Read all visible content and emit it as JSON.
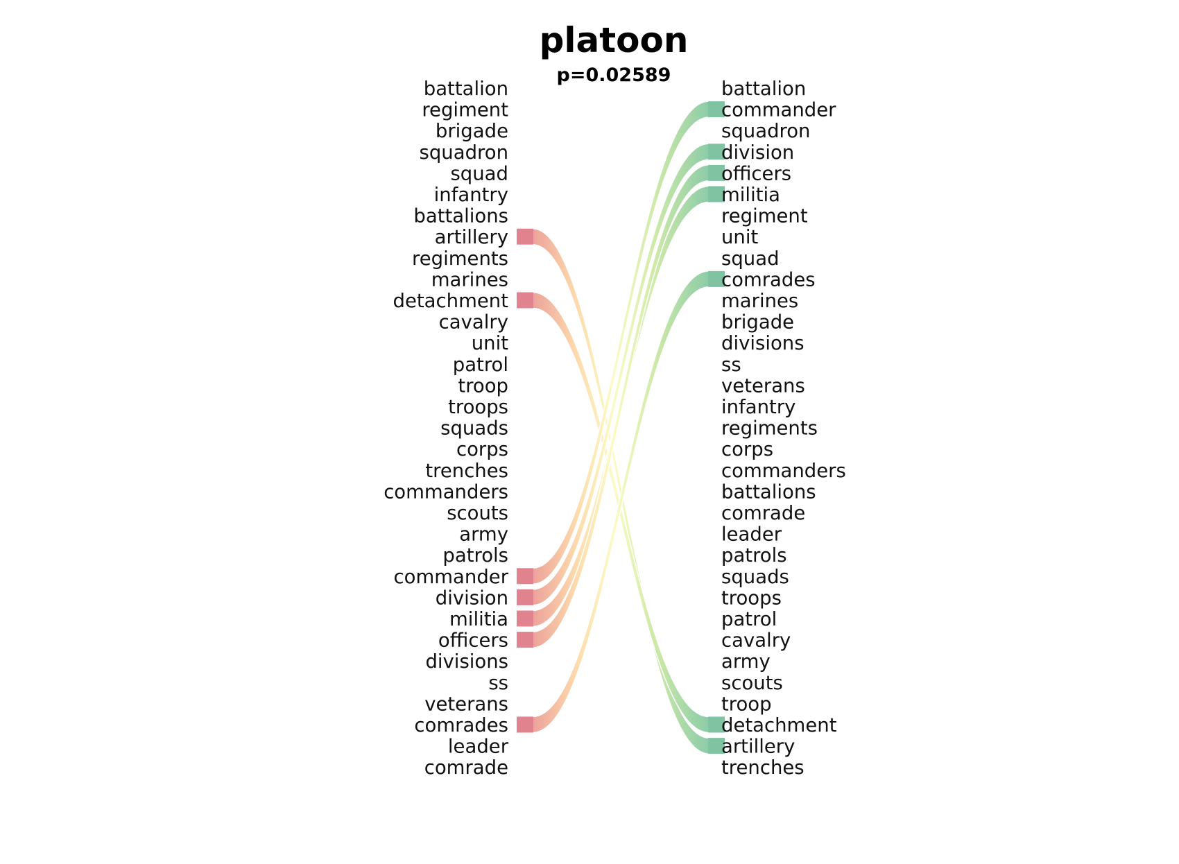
{
  "title": "platoon",
  "subtitle": "p=0.02589",
  "colors": {
    "left_bar": "#e0838e",
    "right_bar": "#7fc3a2",
    "ribbon_left": "#e58a8e",
    "ribbon_mid_left": "#fdd8a8",
    "ribbon_mid": "#fbfbc4",
    "ribbon_mid_right": "#cbe8a4",
    "ribbon_right": "#86c9a4"
  },
  "left_words": [
    "battalion",
    "regiment",
    "brigade",
    "squadron",
    "squad",
    "infantry",
    "battalions",
    "artillery",
    "regiments",
    "marines",
    "detachment",
    "cavalry",
    "unit",
    "patrol",
    "troop",
    "troops",
    "squads",
    "corps",
    "trenches",
    "commanders",
    "scouts",
    "army",
    "patrols",
    "commander",
    "division",
    "militia",
    "officers",
    "divisions",
    "ss",
    "veterans",
    "comrades",
    "leader",
    "comrade"
  ],
  "right_words": [
    "battalion",
    "commander",
    "squadron",
    "division",
    "officers",
    "militia",
    "regiment",
    "unit",
    "squad",
    "comrades",
    "marines",
    "brigade",
    "divisions",
    "ss",
    "veterans",
    "infantry",
    "regiments",
    "corps",
    "commanders",
    "battalions",
    "comrade",
    "leader",
    "patrols",
    "squads",
    "troops",
    "patrol",
    "cavalry",
    "army",
    "scouts",
    "troop",
    "detachment",
    "artillery",
    "trenches"
  ],
  "links": [
    {
      "word": "artillery",
      "from_rank": 8,
      "to_rank": 32
    },
    {
      "word": "detachment",
      "from_rank": 11,
      "to_rank": 31
    },
    {
      "word": "commander",
      "from_rank": 24,
      "to_rank": 2
    },
    {
      "word": "division",
      "from_rank": 25,
      "to_rank": 4
    },
    {
      "word": "militia",
      "from_rank": 26,
      "to_rank": 6
    },
    {
      "word": "officers",
      "from_rank": 27,
      "to_rank": 5
    },
    {
      "word": "comrades",
      "from_rank": 31,
      "to_rank": 10
    }
  ]
}
